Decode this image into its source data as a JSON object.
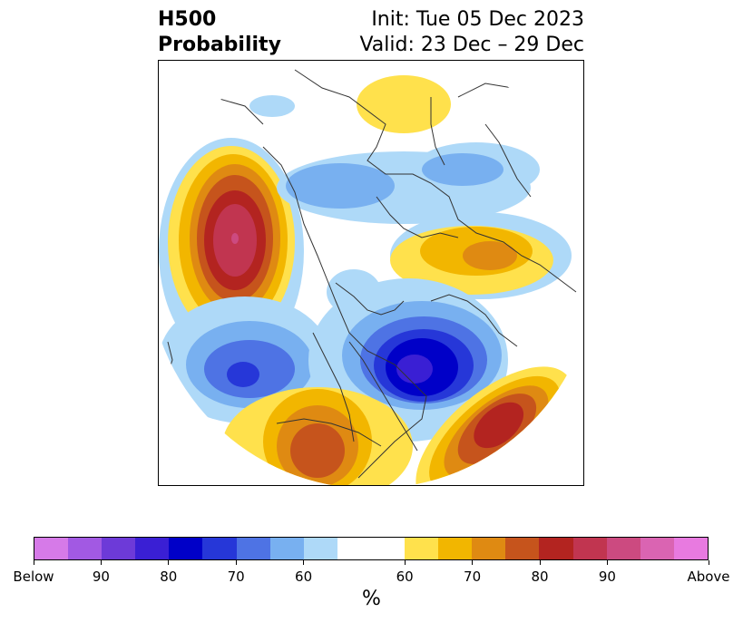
{
  "title": {
    "left_line1": "H500",
    "left_line2": "Probability",
    "right_line1": "Init: Tue 05 Dec 2023",
    "right_line2": "Valid: 23 Dec – 29 Dec"
  },
  "colorbar": {
    "unit": "%",
    "colors": [
      "#d67ae8",
      "#a259e3",
      "#6d3ad8",
      "#3a1fd4",
      "#0000c8",
      "#2637d8",
      "#4e73e4",
      "#78b0f0",
      "#aed9f8",
      "#ffffff",
      "#ffffff",
      "#ffe14c",
      "#f2b600",
      "#df8a12",
      "#c6541c",
      "#b32420",
      "#c13550",
      "#cc4a80",
      "#da64b2",
      "#e87ae0"
    ],
    "tick_labels": [
      "Below",
      "90",
      "80",
      "70",
      "60",
      "60",
      "70",
      "80",
      "90",
      "Above"
    ]
  }
}
